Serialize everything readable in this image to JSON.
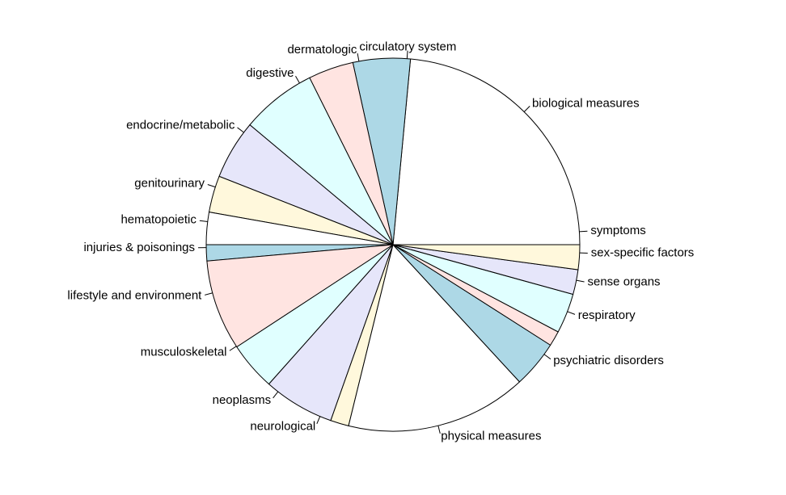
{
  "chart_data": {
    "type": "pie",
    "direction": "counterclockwise",
    "start_angle_deg": 0,
    "colors": [
      "#FFFFFF",
      "#ADD8E6",
      "#FFE4E1",
      "#E0FFFF",
      "#E6E6FA",
      "#FFF8DC"
    ],
    "labels": [
      "biological measures",
      "circulatory system",
      "dermatologic",
      "digestive",
      "endocrine/metabolic",
      "genitourinary",
      "hematopoietic",
      "injuries & poisonings",
      "lifestyle and environment",
      "musculoskeletal",
      "neoplasms",
      "neurological",
      "physical measures",
      "psychiatric disorders",
      "respiratory",
      "sense organs",
      "sex-specific factors",
      "symptoms"
    ],
    "values": [
      25.2,
      5.3,
      4.2,
      7.0,
      5.5,
      3.4,
      3.0,
      1.5,
      8.4,
      4.5,
      6.6,
      1.7,
      16.8,
      4.4,
      1.4,
      3.7,
      2.3,
      2.3
    ],
    "label_angles_deg": [
      45.4,
      85.7,
      100.5,
      120,
      143,
      162,
      172.9,
      180.9,
      195,
      213,
      232,
      247,
      284,
      324,
      339,
      349,
      357.5,
      4
    ]
  }
}
